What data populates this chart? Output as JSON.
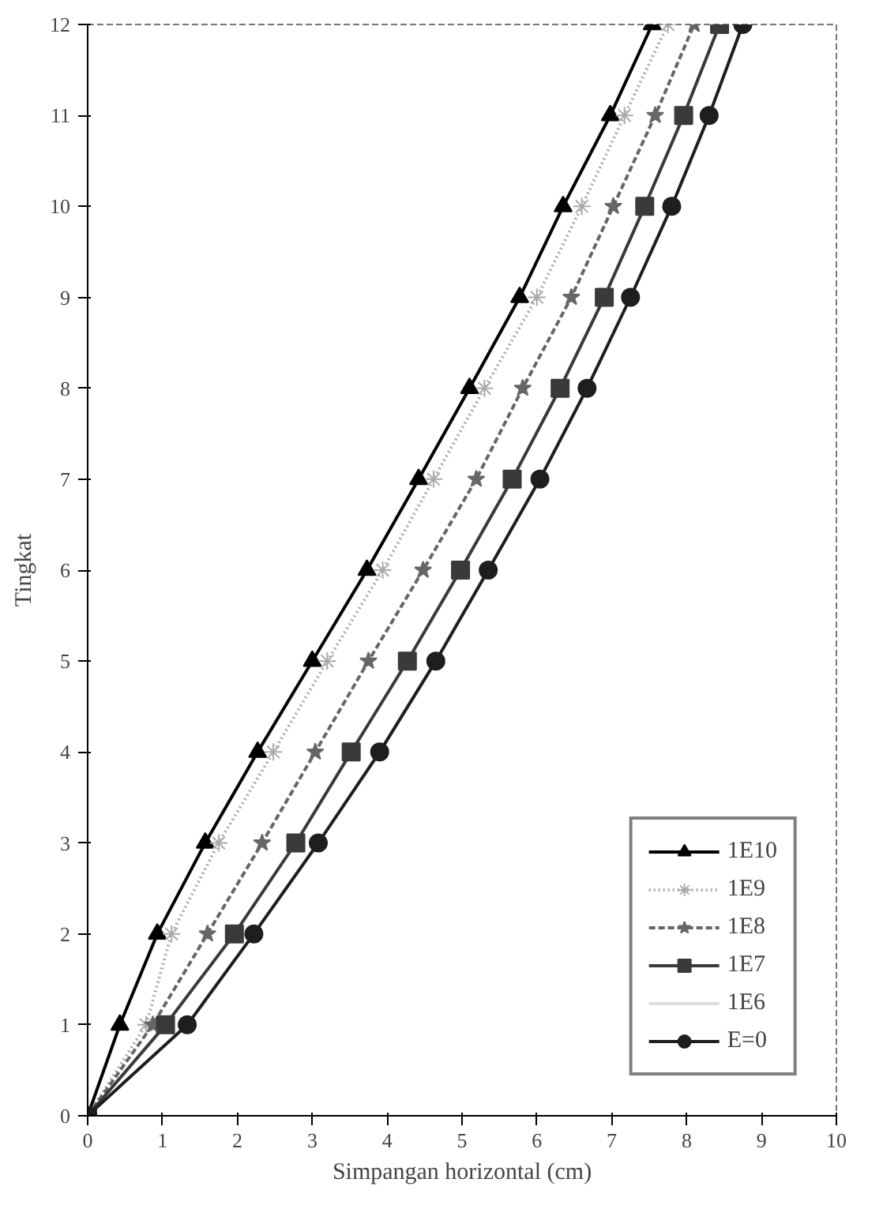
{
  "chart_data": {
    "type": "line",
    "xlabel": "Simpangan horizontal (cm)",
    "ylabel": "Tingkat",
    "xlim": [
      0,
      10
    ],
    "ylim": [
      0,
      12
    ],
    "xticks": [
      0,
      1,
      2,
      3,
      4,
      5,
      6,
      7,
      8,
      9,
      10
    ],
    "yticks": [
      0,
      1,
      2,
      3,
      4,
      5,
      6,
      7,
      8,
      9,
      10,
      11,
      12
    ],
    "grid": false,
    "legend": "bottom right",
    "series": [
      {
        "name": "1E10",
        "color": "#000000",
        "marker": "triangle",
        "line_style": "solid",
        "x": [
          0,
          0.43,
          0.93,
          1.57,
          2.27,
          3.0,
          3.73,
          4.42,
          5.1,
          5.77,
          6.35,
          6.98,
          7.54
        ],
        "values": [
          0,
          1,
          2,
          3,
          4,
          5,
          6,
          7,
          8,
          9,
          10,
          11,
          12
        ]
      },
      {
        "name": "1E9",
        "color": "#aaaaaa",
        "marker": "cross",
        "line_style": "dotted",
        "x": [
          0,
          0.78,
          1.12,
          1.75,
          2.48,
          3.2,
          3.94,
          4.62,
          5.3,
          6.0,
          6.6,
          7.17,
          7.75
        ],
        "values": [
          0,
          1,
          2,
          3,
          4,
          5,
          6,
          7,
          8,
          9,
          10,
          11,
          12
        ]
      },
      {
        "name": "1E8",
        "color": "#666666",
        "marker": "star",
        "line_style": "dashed",
        "x": [
          0,
          0.87,
          1.6,
          2.33,
          3.04,
          3.75,
          4.48,
          5.19,
          5.81,
          6.46,
          7.02,
          7.58,
          8.1
        ],
        "values": [
          0,
          1,
          2,
          3,
          4,
          5,
          6,
          7,
          8,
          9,
          10,
          11,
          12
        ]
      },
      {
        "name": "1E7",
        "color": "#3a3a3a",
        "marker": "square",
        "line_style": "solid",
        "x": [
          0,
          1.04,
          1.96,
          2.78,
          3.52,
          4.27,
          4.98,
          5.67,
          6.31,
          6.9,
          7.44,
          7.96,
          8.44
        ],
        "values": [
          0,
          1,
          2,
          3,
          4,
          5,
          6,
          7,
          8,
          9,
          10,
          11,
          12
        ]
      },
      {
        "name": "1E6",
        "color": "#dddddd",
        "marker": "none",
        "line_style": "solid",
        "values": [
          null,
          null,
          null,
          null,
          null,
          null,
          null,
          null,
          null,
          null,
          null,
          null,
          null
        ]
      },
      {
        "name": "E=0",
        "color": "#1e1e1e",
        "marker": "circle",
        "line_style": "solid",
        "x": [
          0,
          1.33,
          2.22,
          3.08,
          3.9,
          4.65,
          5.35,
          6.04,
          6.67,
          7.25,
          7.8,
          8.3,
          8.75
        ],
        "values": [
          0,
          1,
          2,
          3,
          4,
          5,
          6,
          7,
          8,
          9,
          10,
          11,
          12
        ]
      }
    ]
  }
}
